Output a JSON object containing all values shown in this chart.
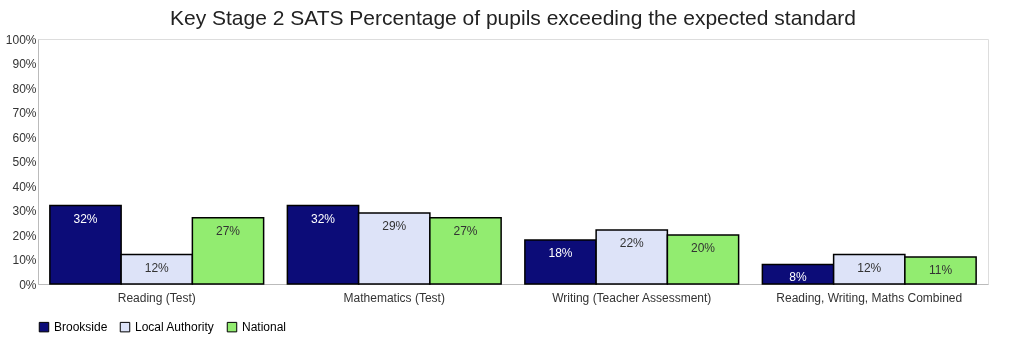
{
  "chart_data": {
    "type": "bar",
    "title": "Key Stage 2 SATS Percentage of pupils exceeding the expected standard",
    "categories": [
      "Reading (Test)",
      "Mathematics (Test)",
      "Writing (Teacher Assessment)",
      "Reading, Writing, Maths Combined"
    ],
    "series": [
      {
        "name": "Brookside",
        "color": "#0c0c78",
        "values": [
          32,
          32,
          18,
          8
        ],
        "value_labels": [
          "32%",
          "32%",
          "18%",
          "8%"
        ]
      },
      {
        "name": "Local Authority",
        "color": "#dde3f8",
        "values": [
          12,
          29,
          22,
          12
        ],
        "value_labels": [
          "12%",
          "29%",
          "22%",
          "12%"
        ]
      },
      {
        "name": "National",
        "color": "#92ec70",
        "values": [
          27,
          27,
          20,
          11
        ],
        "value_labels": [
          "27%",
          "27%",
          "20%",
          "11%"
        ]
      }
    ],
    "ylim": [
      0,
      100
    ],
    "yticks": [
      {
        "value": 0,
        "label": "0%"
      },
      {
        "value": 10,
        "label": "10%"
      },
      {
        "value": 20,
        "label": "20%"
      },
      {
        "value": 30,
        "label": "30%"
      },
      {
        "value": 40,
        "label": "40%"
      },
      {
        "value": 50,
        "label": "50%"
      },
      {
        "value": 60,
        "label": "60%"
      },
      {
        "value": 70,
        "label": "70%"
      },
      {
        "value": 80,
        "label": "80%"
      },
      {
        "value": 90,
        "label": "90%"
      },
      {
        "value": 100,
        "label": "100%"
      }
    ],
    "legend": "bottom",
    "grid": false
  }
}
